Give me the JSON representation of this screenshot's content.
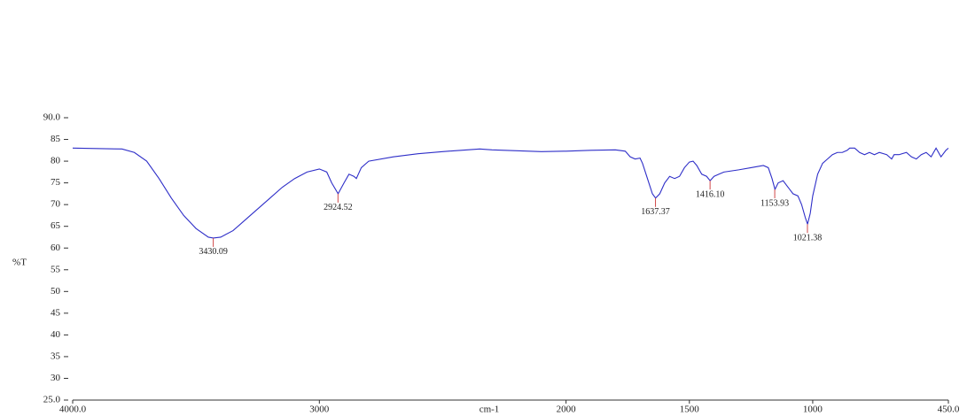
{
  "chart_data": {
    "type": "line",
    "xlabel": "cm-1",
    "ylabel": "%T",
    "x": [
      4000,
      3800,
      3750,
      3700,
      3650,
      3600,
      3550,
      3500,
      3450,
      3430,
      3400,
      3350,
      3300,
      3250,
      3200,
      3150,
      3100,
      3050,
      3000,
      2970,
      2950,
      2924,
      2900,
      2880,
      2860,
      2850,
      2830,
      2800,
      2700,
      2600,
      2500,
      2400,
      2350,
      2300,
      2200,
      2100,
      2000,
      1900,
      1800,
      1760,
      1740,
      1720,
      1700,
      1690,
      1670,
      1650,
      1637,
      1620,
      1600,
      1580,
      1560,
      1540,
      1520,
      1500,
      1485,
      1470,
      1450,
      1430,
      1416,
      1400,
      1380,
      1360,
      1300,
      1250,
      1200,
      1180,
      1165,
      1153,
      1140,
      1120,
      1100,
      1080,
      1060,
      1045,
      1030,
      1021,
      1010,
      1000,
      980,
      960,
      940,
      920,
      900,
      880,
      860,
      850,
      830,
      810,
      790,
      770,
      750,
      730,
      700,
      680,
      670,
      650,
      620,
      600,
      580,
      560,
      540,
      520,
      500,
      480,
      460,
      450
    ],
    "series": [
      {
        "name": "%T",
        "color": "#2e2ec8",
        "values": [
          83,
          82.8,
          82,
          80,
          76,
          71.5,
          67.5,
          64.5,
          62.5,
          62.3,
          62.5,
          64,
          66.5,
          69,
          71.5,
          74,
          76,
          77.5,
          78.2,
          77.5,
          75,
          72.5,
          75,
          77,
          76.5,
          76,
          78.5,
          80,
          81,
          81.7,
          82.2,
          82.6,
          82.8,
          82.6,
          82.4,
          82.2,
          82.3,
          82.5,
          82.6,
          82.3,
          81,
          80.5,
          80.7,
          79.5,
          76,
          72.5,
          71.5,
          72.5,
          75,
          76.5,
          76,
          76.5,
          78.5,
          79.8,
          80,
          79,
          77,
          76.5,
          75.5,
          76.5,
          77,
          77.5,
          78,
          78.5,
          79,
          78.5,
          76,
          73.5,
          75,
          75.5,
          74,
          72.5,
          72,
          70,
          67,
          65.5,
          68,
          72,
          77,
          79.5,
          80.5,
          81.5,
          82,
          82,
          82.5,
          83,
          83,
          82,
          81.5,
          82,
          81.5,
          82,
          81.5,
          80.5,
          81.5,
          81.5,
          82,
          81,
          80.5,
          81.5,
          82,
          81,
          83,
          81,
          82.5,
          83
        ]
      }
    ],
    "peaks": {
      "color": "#d04848",
      "x": [
        3430.09,
        2924.52,
        1637.37,
        1416.1,
        1153.93,
        1021.38
      ],
      "y": [
        62.3,
        72.5,
        71.5,
        75.5,
        73.5,
        65.5
      ],
      "value_labels": [
        "3430.09",
        "2924.52",
        "1637.37",
        "1416.10",
        "1153.93",
        "1021.38"
      ]
    },
    "xlim": [
      4000,
      450
    ],
    "xticks": [
      {
        "value": 4000,
        "label": "4000.0"
      },
      3000,
      2000,
      1500,
      1000,
      {
        "value": 450,
        "label": "450.0"
      }
    ],
    "ylim": [
      25,
      90
    ],
    "yticks": [
      {
        "value": 90,
        "label": "90.0"
      },
      85,
      80,
      75,
      70,
      65,
      60,
      55,
      50,
      45,
      40,
      35,
      30,
      {
        "value": 25,
        "label": "25.0"
      }
    ],
    "grid": false
  }
}
